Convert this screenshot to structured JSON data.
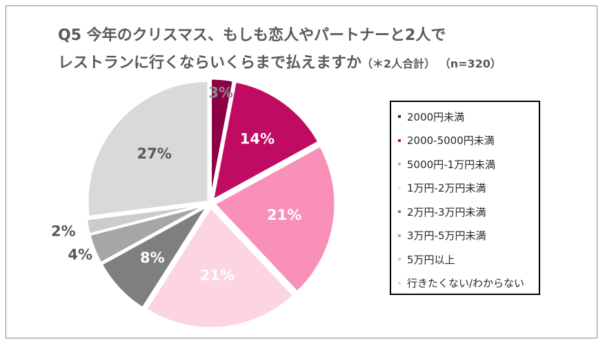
{
  "title": {
    "line1": "Q5 今年のクリスマス、もしも恋人やパートナーと2人で",
    "line2": "レストランに行くならいくらまで払えますか",
    "line2_note": "（＊2人合計） （n=320）"
  },
  "chart_data": {
    "type": "pie",
    "categories": [
      "2000円未満",
      "2000-5000円未満",
      "5000円-1万円未満",
      "1万円-2万円未満",
      "2万円-3万円未満",
      "3万円-5万円未満",
      "5万円以上",
      "行きたくない/わからない"
    ],
    "values": [
      3,
      14,
      21,
      21,
      8,
      4,
      2,
      27
    ],
    "labels": [
      "3%",
      "14%",
      "21%",
      "21%",
      "8%",
      "4%",
      "2%",
      "27%"
    ],
    "colors": [
      "#8c0046",
      "#c00b62",
      "#f990b8",
      "#fcd4e3",
      "#7f7f7f",
      "#a6a6a6",
      "#cccccc",
      "#d9d9d9"
    ],
    "label_colors": [
      "#8c8c8c",
      "#ffffff",
      "#ffffff",
      "#ffffff",
      "#ffffff",
      "#595959",
      "#595959",
      "#595959"
    ],
    "legend_position": "right",
    "start": "12 o'clock",
    "direction": "clockwise"
  }
}
